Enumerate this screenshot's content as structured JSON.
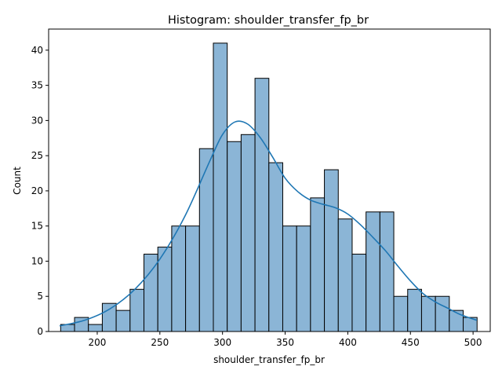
{
  "chart_data": {
    "type": "bar",
    "subtype": "histogram",
    "title": "Histogram: shoulder_transfer_fp_br",
    "xlabel": "shoulder_transfer_fp_br",
    "ylabel": "Count",
    "xlim": [
      161.2,
      513.7
    ],
    "ylim": [
      0,
      43
    ],
    "x_ticks": [
      200,
      250,
      300,
      350,
      400,
      450,
      500
    ],
    "y_ticks": [
      0,
      5,
      10,
      15,
      20,
      25,
      30,
      35,
      40
    ],
    "bin_start": 170.8,
    "bin_width": 11.08,
    "counts": [
      1,
      2,
      1,
      4,
      3,
      6,
      11,
      12,
      15,
      15,
      26,
      41,
      27,
      28,
      36,
      24,
      15,
      15,
      19,
      23,
      16,
      11,
      17,
      17,
      5,
      6,
      5,
      5,
      3,
      2
    ],
    "kde": {
      "x": [
        170,
        190,
        210,
        230,
        250,
        270,
        290,
        300,
        310,
        320,
        330,
        340,
        350,
        360,
        370,
        380,
        390,
        400,
        410,
        420,
        430,
        440,
        450,
        460,
        470,
        480,
        490,
        503
      ],
      "y": [
        0.8,
        1.6,
        3.2,
        6.0,
        10.3,
        16.4,
        24.3,
        28.0,
        29.8,
        29.5,
        27.6,
        24.8,
        21.8,
        19.9,
        18.7,
        18.1,
        17.6,
        16.7,
        15.2,
        13.4,
        11.5,
        9.3,
        7.2,
        5.4,
        4.2,
        3.3,
        2.4,
        1.6
      ]
    },
    "grid": false,
    "legend": "none",
    "bar_color": "#8bb5d6",
    "bar_edge_color": "#000000",
    "kde_color": "#1f77b4"
  }
}
